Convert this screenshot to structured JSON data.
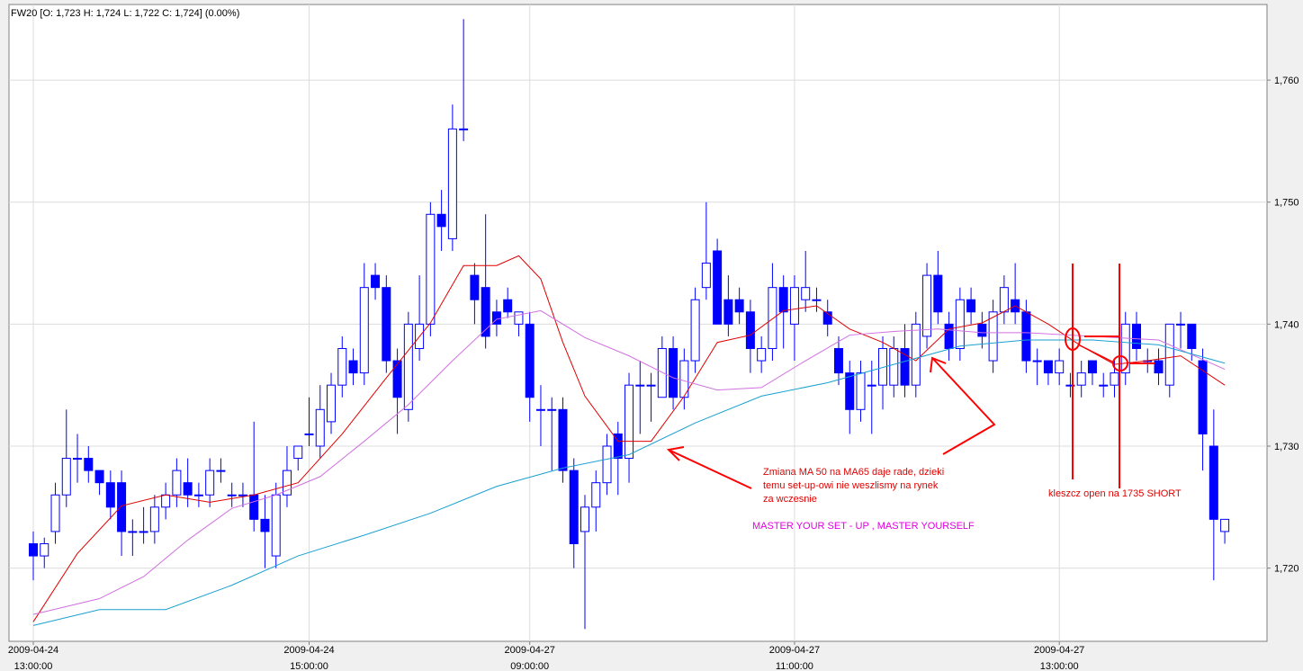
{
  "chart_data": {
    "type": "candlestick",
    "header": "FW20 [O: 1,723  H: 1,724  L: 1,722  C: 1,724] (0.00%)",
    "up_color": "#ffffff",
    "down_color": "#0000ff",
    "edge_color": "#0000ff",
    "open": [
      1722,
      1721,
      1723,
      1726,
      1729,
      1729,
      1728,
      1727,
      1727,
      1723,
      1723,
      1723,
      1725,
      1726,
      1727,
      1726,
      1726,
      1728,
      1726,
      1726,
      1726,
      1724,
      1721,
      1726,
      1729,
      1731,
      1730,
      1732,
      1735,
      1737,
      1736,
      1744,
      1743,
      1737,
      1733,
      1738,
      1740,
      1749,
      1747,
      1756,
      1744,
      1743,
      1741,
      1742,
      1740,
      1740,
      1733,
      1733,
      1733,
      1728,
      1723,
      1725,
      1727,
      1731,
      1729,
      1735,
      1735,
      1734,
      1738,
      1734,
      1737,
      1743,
      1746,
      1742,
      1742,
      1741,
      1737,
      1738,
      1743,
      1740,
      1742,
      1742,
      1741,
      1738,
      1736,
      1733,
      1735,
      1735,
      1735,
      1738,
      1735,
      1739,
      1744,
      1740,
      1738,
      1742,
      1740,
      1737,
      1741,
      1742,
      1741,
      1737,
      1737,
      1736,
      1735,
      1735,
      1737,
      1735,
      1735,
      1736,
      1740,
      1737,
      1737,
      1735,
      1740,
      1740,
      1737,
      1730,
      1723
    ],
    "high": [
      1723,
      1722.5,
      1727,
      1733,
      1731,
      1730,
      1728,
      1728,
      1728,
      1724,
      1725,
      1726,
      1727,
      1729,
      1729,
      1727,
      1729,
      1729,
      1727,
      1727,
      1732,
      1726,
      1727,
      1730,
      1730,
      1734,
      1735,
      1736,
      1739,
      1738,
      1745,
      1745,
      1744,
      1738,
      1741,
      1744,
      1750,
      1751,
      1758,
      1765,
      1745,
      1749,
      1742,
      1743,
      1741,
      1741,
      1735,
      1734,
      1734,
      1729,
      1726,
      1728,
      1731,
      1732,
      1736,
      1737,
      1736,
      1739,
      1739,
      1738,
      1743,
      1750,
      1747,
      1744,
      1743,
      1742,
      1739,
      1745,
      1744,
      1744,
      1746,
      1743,
      1742,
      1739,
      1737,
      1737,
      1737,
      1739,
      1739,
      1740,
      1741,
      1745,
      1746,
      1741,
      1743,
      1743,
      1741,
      1742,
      1744,
      1745,
      1742,
      1738,
      1737,
      1738,
      1736,
      1737,
      1737,
      1736,
      1737,
      1741,
      1741,
      1738,
      1738,
      1740,
      1741,
      1740,
      1738,
      1733,
      1724
    ],
    "low": [
      1719,
      1720,
      1722,
      1725,
      1727,
      1727,
      1726,
      1724,
      1721,
      1721,
      1722,
      1722,
      1724,
      1725,
      1725,
      1725,
      1725,
      1727,
      1725,
      1725,
      1723,
      1720,
      1720,
      1725,
      1728,
      1730,
      1729,
      1731,
      1734,
      1735,
      1735,
      1742,
      1736,
      1731,
      1732,
      1737,
      1739,
      1746,
      1746,
      1755,
      1740,
      1738,
      1739,
      1740.5,
      1739,
      1732,
      1730,
      1728,
      1727,
      1720,
      1715,
      1723,
      1726,
      1726,
      1727,
      1731,
      1732,
      1734,
      1733,
      1733,
      1736,
      1742,
      1740,
      1739,
      1740,
      1736,
      1736,
      1737,
      1738,
      1737,
      1741,
      1741,
      1739,
      1735,
      1731,
      1732,
      1731,
      1733,
      1734,
      1734,
      1734,
      1738,
      1740,
      1737,
      1737,
      1740,
      1738,
      1736,
      1740,
      1740,
      1736,
      1735,
      1735,
      1735,
      1734,
      1734,
      1735,
      1734,
      1734,
      1735,
      1737,
      1736,
      1735,
      1734,
      1738,
      1737,
      1728,
      1719,
      1722
    ],
    "close": [
      1721,
      1722,
      1726,
      1729,
      1729,
      1728,
      1727,
      1725,
      1723,
      1723,
      1723,
      1725,
      1726,
      1728,
      1726,
      1726,
      1728,
      1728,
      1726,
      1726,
      1724,
      1723,
      1726,
      1728,
      1730,
      1731,
      1733,
      1735,
      1738,
      1736,
      1743,
      1743,
      1737,
      1734,
      1740,
      1740,
      1749,
      1748,
      1756,
      1756,
      1742,
      1739,
      1740,
      1741,
      1741,
      1734,
      1733,
      1733,
      1728,
      1722,
      1725,
      1727,
      1730,
      1729,
      1735,
      1735,
      1735,
      1738,
      1734,
      1737,
      1742,
      1745,
      1740,
      1740,
      1741,
      1738,
      1738,
      1743,
      1741,
      1743,
      1743,
      1742,
      1740,
      1736,
      1733,
      1736,
      1735,
      1738,
      1738,
      1735,
      1740,
      1744,
      1741,
      1738,
      1742,
      1741,
      1739,
      1741,
      1743,
      1741,
      1737,
      1737,
      1736,
      1737,
      1735,
      1736,
      1736,
      1735,
      1736,
      1740,
      1738,
      1737,
      1736,
      1740,
      1740,
      1738,
      1731,
      1724,
      1724
    ],
    "lines": [
      {
        "color": "#e00000",
        "x": [
          0,
          4,
          8,
          12,
          16,
          20,
          24,
          28,
          32,
          36,
          39,
          42,
          44,
          46,
          48,
          50,
          53,
          56,
          59,
          62,
          65,
          68,
          71,
          74,
          77,
          80,
          83,
          86,
          89,
          92,
          95,
          98,
          101,
          104,
          108
        ],
        "values": [
          1715.6,
          1721.2,
          1725.1,
          1726,
          1725.4,
          1726,
          1727,
          1731,
          1735.6,
          1740.1,
          1744.8,
          1744.8,
          1745.6,
          1743.7,
          1738.5,
          1734.1,
          1730.4,
          1730.4,
          1734.1,
          1738.5,
          1739.1,
          1741.1,
          1741.5,
          1739.6,
          1738.5,
          1737,
          1739.6,
          1740.1,
          1741.5,
          1740,
          1738.2,
          1736.7,
          1737,
          1737.4,
          1735
        ]
      },
      {
        "color": "#d070e0",
        "x": [
          0,
          6,
          10,
          14,
          18,
          22,
          26,
          30,
          34,
          38,
          42,
          46,
          50,
          54,
          58,
          62,
          66,
          70,
          74,
          78,
          82,
          86,
          90,
          94,
          98,
          102,
          108
        ],
        "values": [
          1716.2,
          1717.5,
          1719.3,
          1722.3,
          1724.9,
          1726,
          1727.5,
          1730.4,
          1733.4,
          1737,
          1740.4,
          1741.1,
          1738.9,
          1737.4,
          1735.6,
          1734.6,
          1734.8,
          1737,
          1739.1,
          1739.4,
          1739.6,
          1739.3,
          1739.3,
          1739.1,
          1738.9,
          1738.7,
          1736.3
        ]
      },
      {
        "color": "#1aa0d0",
        "x": [
          0,
          6,
          12,
          18,
          24,
          30,
          36,
          42,
          48,
          54,
          60,
          66,
          72,
          78,
          84,
          90,
          96,
          102,
          108
        ],
        "values": [
          1715.3,
          1716.6,
          1716.6,
          1718.6,
          1721,
          1722.7,
          1724.5,
          1726.7,
          1728.2,
          1729.3,
          1731.9,
          1734.1,
          1735.2,
          1736.7,
          1738.2,
          1738.7,
          1738.7,
          1738.3,
          1736.8
        ]
      }
    ],
    "ylim": [
      1714,
      1766.2
    ],
    "yticks": [
      {
        "value": 1720,
        "label": "1,720"
      },
      {
        "value": 1730,
        "label": "1,730"
      },
      {
        "value": 1740,
        "label": "1,740"
      },
      {
        "value": 1750,
        "label": "1,750"
      },
      {
        "value": 1760,
        "label": "1,760"
      }
    ],
    "xticks": [
      {
        "value": 0,
        "date": "2009-04-24",
        "time": "13:00:00"
      },
      {
        "value": 25,
        "date": "2009-04-24",
        "time": "15:00:00"
      },
      {
        "value": 45,
        "date": "2009-04-27",
        "time": "09:00:00"
      },
      {
        "value": 69,
        "date": "2009-04-27",
        "time": "11:00:00"
      },
      {
        "value": 93,
        "date": "2009-04-27",
        "time": "13:00:00"
      }
    ],
    "grid": true,
    "annotations": {
      "note_lines": [
        "Zmiana MA 50 na MA65 daje rade, dzieki",
        "temu set-up-owi nie weszlismy na rynek",
        "za wczesnie"
      ],
      "motto": "MASTER YOUR SET - UP , MASTER YOURSELF",
      "trade": "kleszcz open na 1735 SHORT"
    }
  }
}
